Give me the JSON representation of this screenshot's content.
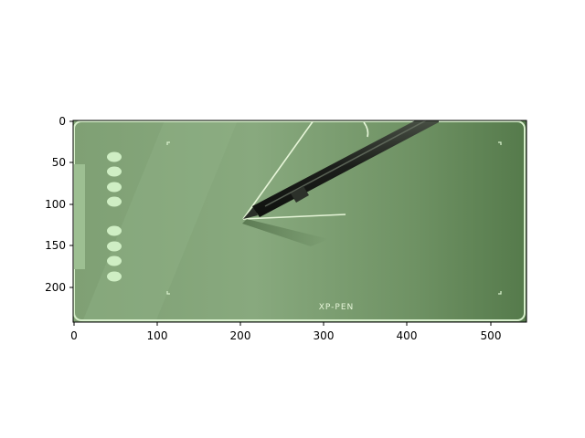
{
  "image": {
    "subject": "green drawing tablet with stylus pen",
    "brand_label": "XP-PEN",
    "colors": {
      "tablet_surface": "#7e9e74",
      "tablet_dark_edge": "#5c7f52",
      "tablet_border": "#d8f0cc",
      "button": "#cfeec4",
      "pen_body": "#1b1e1a",
      "pen_highlight": "#4a5246",
      "guide_line": "#e6f5d8"
    }
  },
  "axes": {
    "x_ticks": [
      "0",
      "100",
      "200",
      "300",
      "400",
      "500"
    ],
    "y_ticks": [
      "0",
      "50",
      "100",
      "150",
      "200"
    ]
  }
}
